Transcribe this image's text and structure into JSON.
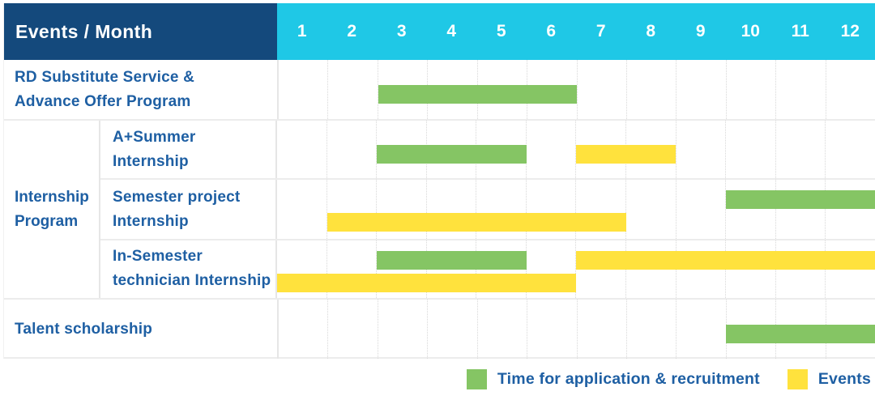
{
  "title": "Events / Month",
  "colors": {
    "header_bg": "#14497C",
    "months_bg": "#1FC8E6",
    "header_text": "#FFFFFF",
    "label_text": "#1E5FA3",
    "green": "#85C564",
    "yellow": "#FFE23D",
    "row_line": "#ECECEC",
    "grid_dotted": "#D8D8D8"
  },
  "chart_data": {
    "type": "bar",
    "subtype": "gantt-timeline",
    "title": "Events / Month",
    "x_categories": [
      "1",
      "2",
      "3",
      "4",
      "5",
      "6",
      "7",
      "8",
      "9",
      "10",
      "11",
      "12"
    ],
    "x_label": "Month",
    "months_total": 12,
    "grid": "dotted-vertical",
    "legend_position": "bottom-right",
    "series_legend": [
      {
        "key": "green",
        "name": "Time for application & recruitment",
        "color": "#85C564"
      },
      {
        "key": "yellow",
        "name": "Events",
        "color": "#FFE23D"
      }
    ],
    "group_label_lines": [
      "Internship",
      "Program"
    ],
    "rows": [
      {
        "label_lines": [
          "RD Substitute Service &",
          "Advance Offer Program"
        ],
        "group": null,
        "bars": [
          {
            "series": "green",
            "start_month": 3,
            "end_month": 6,
            "lane": "single"
          }
        ]
      },
      {
        "label_lines": [
          "A+Summer",
          "Internship"
        ],
        "group": "Internship Program",
        "bars": [
          {
            "series": "green",
            "start_month": 3,
            "end_month": 5,
            "lane": "single"
          },
          {
            "series": "yellow",
            "start_month": 7,
            "end_month": 8,
            "lane": "single"
          }
        ]
      },
      {
        "label_lines": [
          "Semester project",
          "Internship"
        ],
        "group": "Internship Program",
        "bars": [
          {
            "series": "green",
            "start_month": 10,
            "end_month": 12,
            "lane": "top"
          },
          {
            "series": "yellow",
            "start_month": 2,
            "end_month": 7,
            "lane": "bottom"
          }
        ]
      },
      {
        "label_lines": [
          "In-Semester",
          "technician Internship"
        ],
        "group": "Internship Program",
        "bars": [
          {
            "series": "green",
            "start_month": 3,
            "end_month": 5,
            "lane": "top"
          },
          {
            "series": "yellow",
            "start_month": 7,
            "end_month": 12,
            "lane": "top"
          },
          {
            "series": "yellow",
            "start_month": 1,
            "end_month": 6,
            "lane": "bottom"
          }
        ]
      },
      {
        "label_lines": [
          "Talent scholarship"
        ],
        "group": null,
        "bars": [
          {
            "series": "green",
            "start_month": 10,
            "end_month": 12,
            "lane": "single"
          }
        ]
      }
    ]
  },
  "legend": {
    "items": [
      {
        "key": "green",
        "label": "Time for application & recruitment"
      },
      {
        "key": "yellow",
        "label": "Events"
      }
    ]
  }
}
